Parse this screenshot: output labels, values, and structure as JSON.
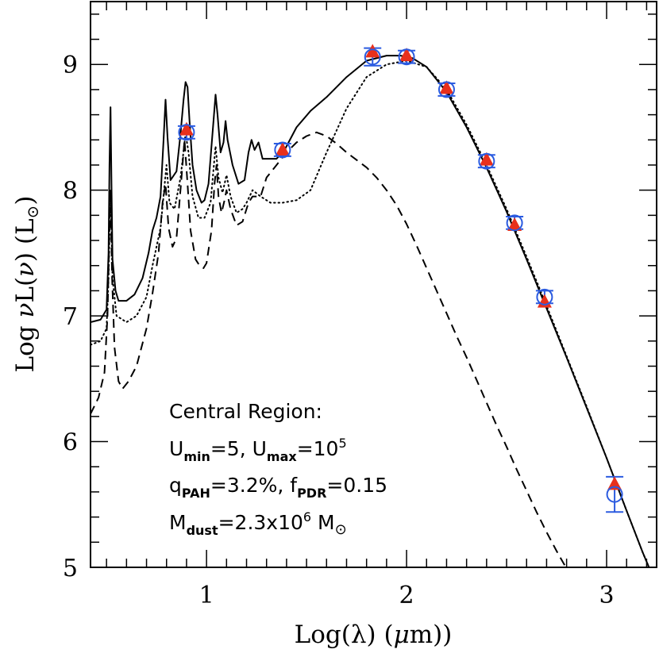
{
  "chart_data": {
    "type": "scatter",
    "xlabel_parts": [
      "Log(λ)  (",
      "μ",
      "m))"
    ],
    "ylabel_parts": [
      "Log ",
      "ν",
      "L(",
      "ν",
      ")  (L",
      "⊙",
      ")"
    ],
    "xlim": [
      0.42,
      3.25
    ],
    "ylim": [
      5.0,
      9.5
    ],
    "x_ticks": [
      1,
      2,
      3
    ],
    "x_tick_labels": [
      "1",
      "2",
      "3"
    ],
    "y_ticks": [
      5,
      6,
      7,
      8,
      9
    ],
    "y_tick_labels": [
      "5",
      "6",
      "7",
      "8",
      "9"
    ],
    "colors": {
      "open_circle": "#2b5be0",
      "filled_triangle": "#e8301c",
      "curves": "#000000"
    },
    "series": [
      {
        "style": "solid",
        "points": [
          [
            0.42,
            6.95
          ],
          [
            0.47,
            6.97
          ],
          [
            0.5,
            7.05
          ],
          [
            0.51,
            7.5
          ],
          [
            0.515,
            8.2
          ],
          [
            0.52,
            8.66
          ],
          [
            0.525,
            8.0
          ],
          [
            0.53,
            7.45
          ],
          [
            0.545,
            7.2
          ],
          [
            0.56,
            7.12
          ],
          [
            0.6,
            7.12
          ],
          [
            0.64,
            7.17
          ],
          [
            0.68,
            7.3
          ],
          [
            0.71,
            7.5
          ],
          [
            0.73,
            7.68
          ],
          [
            0.75,
            7.78
          ],
          [
            0.77,
            7.95
          ],
          [
            0.785,
            8.4
          ],
          [
            0.795,
            8.72
          ],
          [
            0.805,
            8.42
          ],
          [
            0.82,
            8.08
          ],
          [
            0.85,
            8.15
          ],
          [
            0.87,
            8.45
          ],
          [
            0.885,
            8.72
          ],
          [
            0.895,
            8.86
          ],
          [
            0.905,
            8.82
          ],
          [
            0.915,
            8.55
          ],
          [
            0.93,
            8.2
          ],
          [
            0.95,
            8.0
          ],
          [
            0.975,
            7.9
          ],
          [
            0.99,
            7.92
          ],
          [
            1.01,
            8.05
          ],
          [
            1.035,
            8.55
          ],
          [
            1.045,
            8.76
          ],
          [
            1.055,
            8.6
          ],
          [
            1.07,
            8.3
          ],
          [
            1.085,
            8.38
          ],
          [
            1.095,
            8.55
          ],
          [
            1.105,
            8.4
          ],
          [
            1.13,
            8.2
          ],
          [
            1.16,
            8.05
          ],
          [
            1.19,
            8.08
          ],
          [
            1.21,
            8.3
          ],
          [
            1.225,
            8.4
          ],
          [
            1.24,
            8.32
          ],
          [
            1.26,
            8.38
          ],
          [
            1.28,
            8.25
          ],
          [
            1.31,
            8.25
          ],
          [
            1.35,
            8.25
          ],
          [
            1.39,
            8.32
          ],
          [
            1.45,
            8.5
          ],
          [
            1.52,
            8.63
          ],
          [
            1.6,
            8.74
          ],
          [
            1.7,
            8.9
          ],
          [
            1.8,
            9.03
          ],
          [
            1.9,
            9.07
          ],
          [
            1.97,
            9.07
          ],
          [
            2.03,
            9.05
          ],
          [
            2.1,
            8.98
          ],
          [
            2.2,
            8.78
          ],
          [
            2.3,
            8.5
          ],
          [
            2.4,
            8.18
          ],
          [
            2.5,
            7.83
          ],
          [
            2.6,
            7.45
          ],
          [
            2.7,
            7.06
          ],
          [
            2.8,
            6.67
          ],
          [
            2.9,
            6.27
          ],
          [
            3.0,
            5.87
          ],
          [
            3.1,
            5.45
          ],
          [
            3.18,
            5.12
          ],
          [
            3.22,
            4.97
          ]
        ]
      },
      {
        "style": "dotted",
        "points": [
          [
            0.42,
            6.77
          ],
          [
            0.47,
            6.8
          ],
          [
            0.5,
            6.9
          ],
          [
            0.51,
            7.3
          ],
          [
            0.52,
            8.0
          ],
          [
            0.53,
            7.3
          ],
          [
            0.55,
            7.0
          ],
          [
            0.6,
            6.95
          ],
          [
            0.65,
            7.0
          ],
          [
            0.7,
            7.15
          ],
          [
            0.73,
            7.4
          ],
          [
            0.77,
            7.7
          ],
          [
            0.8,
            8.2
          ],
          [
            0.815,
            7.9
          ],
          [
            0.84,
            7.85
          ],
          [
            0.87,
            8.1
          ],
          [
            0.895,
            8.45
          ],
          [
            0.91,
            8.3
          ],
          [
            0.93,
            7.95
          ],
          [
            0.96,
            7.78
          ],
          [
            0.99,
            7.78
          ],
          [
            1.02,
            7.9
          ],
          [
            1.045,
            8.35
          ],
          [
            1.06,
            8.1
          ],
          [
            1.08,
            7.98
          ],
          [
            1.1,
            8.12
          ],
          [
            1.12,
            7.95
          ],
          [
            1.15,
            7.82
          ],
          [
            1.18,
            7.85
          ],
          [
            1.2,
            7.9
          ],
          [
            1.23,
            8.0
          ],
          [
            1.27,
            7.95
          ],
          [
            1.32,
            7.9
          ],
          [
            1.38,
            7.9
          ],
          [
            1.45,
            7.92
          ],
          [
            1.52,
            8.0
          ],
          [
            1.6,
            8.3
          ],
          [
            1.7,
            8.65
          ],
          [
            1.8,
            8.9
          ],
          [
            1.9,
            9.0
          ],
          [
            2.0,
            9.03
          ],
          [
            2.1,
            8.98
          ],
          [
            2.2,
            8.8
          ],
          [
            2.3,
            8.52
          ],
          [
            2.4,
            8.2
          ],
          [
            2.5,
            7.85
          ],
          [
            2.6,
            7.47
          ],
          [
            2.7,
            7.08
          ],
          [
            2.8,
            6.68
          ],
          [
            2.9,
            6.28
          ],
          [
            3.0,
            5.87
          ],
          [
            3.1,
            5.45
          ],
          [
            3.18,
            5.12
          ],
          [
            3.22,
            4.97
          ]
        ]
      },
      {
        "style": "dashed",
        "points": [
          [
            0.42,
            6.22
          ],
          [
            0.46,
            6.35
          ],
          [
            0.49,
            6.55
          ],
          [
            0.505,
            7.0
          ],
          [
            0.515,
            7.7
          ],
          [
            0.52,
            7.95
          ],
          [
            0.528,
            7.3
          ],
          [
            0.54,
            6.75
          ],
          [
            0.56,
            6.48
          ],
          [
            0.58,
            6.42
          ],
          [
            0.61,
            6.48
          ],
          [
            0.65,
            6.6
          ],
          [
            0.7,
            6.9
          ],
          [
            0.73,
            7.18
          ],
          [
            0.76,
            7.5
          ],
          [
            0.78,
            7.9
          ],
          [
            0.795,
            8.05
          ],
          [
            0.81,
            7.7
          ],
          [
            0.83,
            7.55
          ],
          [
            0.85,
            7.62
          ],
          [
            0.875,
            8.1
          ],
          [
            0.89,
            8.4
          ],
          [
            0.905,
            8.05
          ],
          [
            0.92,
            7.68
          ],
          [
            0.945,
            7.45
          ],
          [
            0.965,
            7.4
          ],
          [
            0.985,
            7.38
          ],
          [
            1.0,
            7.42
          ],
          [
            1.025,
            7.68
          ],
          [
            1.04,
            8.05
          ],
          [
            1.05,
            8.2
          ],
          [
            1.06,
            7.95
          ],
          [
            1.075,
            7.82
          ],
          [
            1.09,
            7.92
          ],
          [
            1.1,
            8.0
          ],
          [
            1.12,
            7.85
          ],
          [
            1.15,
            7.72
          ],
          [
            1.18,
            7.75
          ],
          [
            1.21,
            7.9
          ],
          [
            1.23,
            7.95
          ],
          [
            1.27,
            7.95
          ],
          [
            1.3,
            8.1
          ],
          [
            1.35,
            8.2
          ],
          [
            1.4,
            8.3
          ],
          [
            1.45,
            8.38
          ],
          [
            1.5,
            8.43
          ],
          [
            1.55,
            8.46
          ],
          [
            1.6,
            8.43
          ],
          [
            1.65,
            8.37
          ],
          [
            1.7,
            8.3
          ],
          [
            1.75,
            8.24
          ],
          [
            1.8,
            8.18
          ],
          [
            1.85,
            8.1
          ],
          [
            1.9,
            8.0
          ],
          [
            1.95,
            7.88
          ],
          [
            2.0,
            7.73
          ],
          [
            2.05,
            7.56
          ],
          [
            2.1,
            7.38
          ],
          [
            2.15,
            7.2
          ],
          [
            2.2,
            7.02
          ],
          [
            2.25,
            6.84
          ],
          [
            2.3,
            6.67
          ],
          [
            2.35,
            6.49
          ],
          [
            2.4,
            6.31
          ],
          [
            2.45,
            6.13
          ],
          [
            2.5,
            5.96
          ],
          [
            2.55,
            5.78
          ],
          [
            2.6,
            5.61
          ],
          [
            2.65,
            5.44
          ],
          [
            2.7,
            5.28
          ],
          [
            2.75,
            5.13
          ],
          [
            2.8,
            4.99
          ]
        ]
      }
    ],
    "observed_points": [
      {
        "x": 0.9,
        "y": 8.46,
        "err": 0.05
      },
      {
        "x": 1.38,
        "y": 8.32,
        "err": 0.05
      },
      {
        "x": 1.83,
        "y": 9.06,
        "err": 0.07
      },
      {
        "x": 2.0,
        "y": 9.06,
        "err": 0.05
      },
      {
        "x": 2.2,
        "y": 8.8,
        "err": 0.05
      },
      {
        "x": 2.4,
        "y": 8.23,
        "err": 0.05
      },
      {
        "x": 2.54,
        "y": 7.74,
        "err": 0.05
      },
      {
        "x": 2.69,
        "y": 7.15,
        "err": 0.05
      },
      {
        "x": 3.04,
        "y": 5.58,
        "err": 0.14
      }
    ],
    "model_points": [
      {
        "x": 0.9,
        "y": 8.48
      },
      {
        "x": 1.38,
        "y": 8.32
      },
      {
        "x": 1.83,
        "y": 9.1
      },
      {
        "x": 2.0,
        "y": 9.07
      },
      {
        "x": 2.2,
        "y": 8.81
      },
      {
        "x": 2.4,
        "y": 8.24
      },
      {
        "x": 2.54,
        "y": 7.72
      },
      {
        "x": 2.69,
        "y": 7.11
      },
      {
        "x": 3.04,
        "y": 5.66
      }
    ],
    "annotation": {
      "heading": "Central Region:",
      "line1": {
        "a": "U",
        "a_sub": "min",
        "b": "=5,  U",
        "b_sub": "max",
        "c": "=10",
        "c_sup": "5"
      },
      "line2": {
        "a": "q",
        "a_sub": "PAH",
        "b": "=3.2%,  f",
        "b_sub": "PDR",
        "c": "=0.15"
      },
      "line3": {
        "a": "M",
        "a_sub": "dust",
        "b": "=2.3x10",
        "b_sup": "6",
        "c": " M",
        "c_sym": "⊙"
      }
    }
  }
}
